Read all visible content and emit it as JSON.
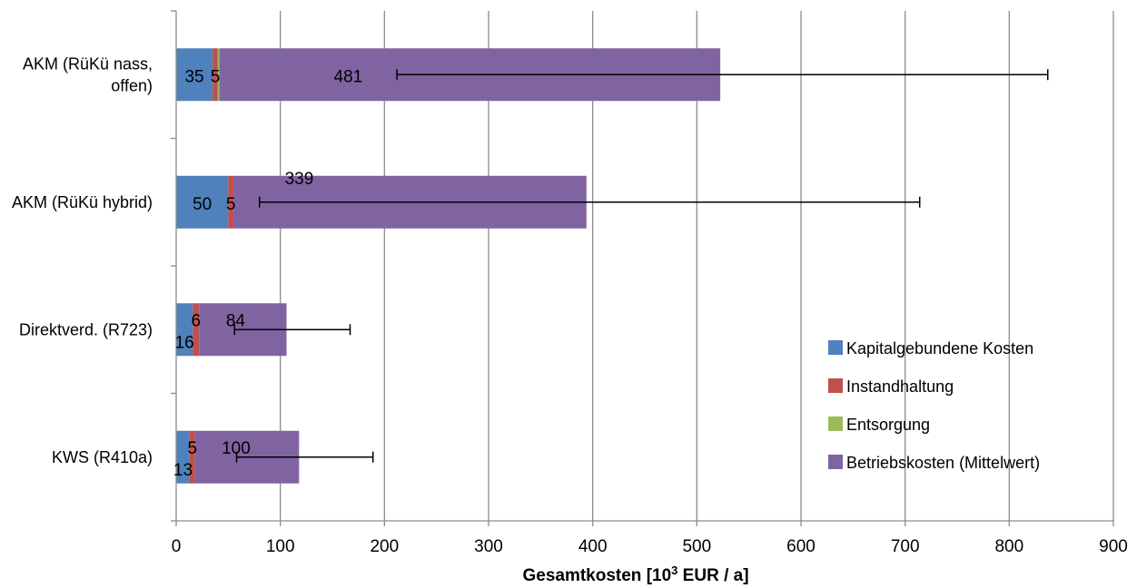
{
  "chart_data": {
    "type": "bar",
    "orientation": "horizontal",
    "stacked": true,
    "categories": [
      "AKM (RüKü nass, offen)",
      "AKM (RüKü hybrid)",
      "Direktverd. (R723)",
      "KWS (R410a)"
    ],
    "category_lines": [
      [
        "AKM (RüKü nass,",
        "offen)"
      ],
      [
        "AKM (RüKü hybrid)"
      ],
      [
        "Direktverd. (R723)"
      ],
      [
        "KWS (R410a)"
      ]
    ],
    "series": [
      {
        "name": "Kapitalgebundene Kosten",
        "color": "#4F81BD",
        "values": [
          35,
          50,
          16,
          13
        ],
        "labels": [
          "35",
          "50",
          "16",
          "13"
        ]
      },
      {
        "name": "Instandhaltung",
        "color": "#C0504D",
        "values": [
          5,
          5,
          6,
          5
        ],
        "labels": [
          "5",
          "5",
          "6",
          "5"
        ]
      },
      {
        "name": "Entsorgung",
        "color": "#9BBB59",
        "values": [
          1.5,
          0,
          0,
          0
        ],
        "labels": [
          "",
          "",
          "",
          ""
        ]
      },
      {
        "name": "Betriebskosten (Mittelwert)",
        "color": "#8064A2",
        "values": [
          481,
          339,
          84,
          100
        ],
        "labels": [
          "481",
          "339",
          "84",
          "100"
        ]
      }
    ],
    "error_bars": [
      {
        "low": 212,
        "high": 837
      },
      {
        "low": 80,
        "high": 714
      },
      {
        "low": 56,
        "high": 167
      },
      {
        "low": 58,
        "high": 189
      }
    ],
    "xlim": [
      0,
      900
    ],
    "x_ticks": [
      0,
      100,
      200,
      300,
      400,
      500,
      600,
      700,
      800,
      900
    ],
    "xlabel_parts": [
      "Gesamtkosten  [10",
      "3",
      " EUR / a]"
    ],
    "grid": "vertical",
    "legend_position": "bottom-right"
  }
}
